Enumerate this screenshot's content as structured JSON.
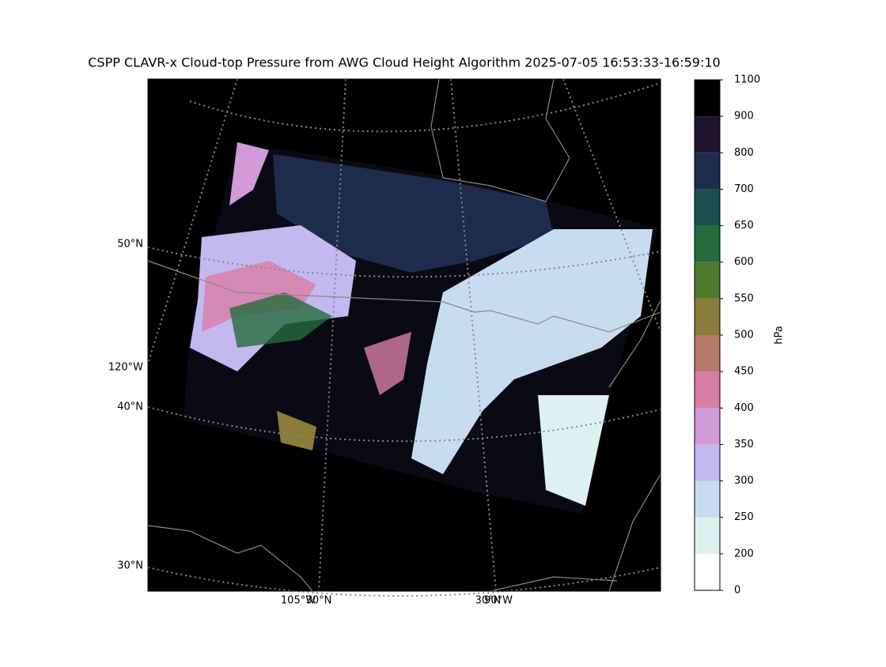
{
  "title": "CSPP CLAVR-x Cloud-top Pressure from AWG Cloud Height Algorithm 2025-07-05 16:53:33-16:59:10",
  "map_labels": {
    "left": [
      "50°N",
      "120°W",
      "40°N",
      "30°N"
    ],
    "bottom": [
      "105°W",
      "30°N",
      "30°N",
      "90°W"
    ]
  },
  "colorbar": {
    "label": "hPa",
    "ticks": [
      0,
      200,
      250,
      300,
      350,
      400,
      450,
      500,
      550,
      600,
      650,
      700,
      800,
      900,
      1100
    ],
    "colors": [
      "#ffffff",
      "#ddf2ee",
      "#c8dcf0",
      "#c4b8f0",
      "#d29ad8",
      "#d87ea6",
      "#b87868",
      "#8a7c3a",
      "#4e7a30",
      "#256b3c",
      "#1a4f50",
      "#1d2c4c",
      "#201530",
      "#000000"
    ]
  }
}
